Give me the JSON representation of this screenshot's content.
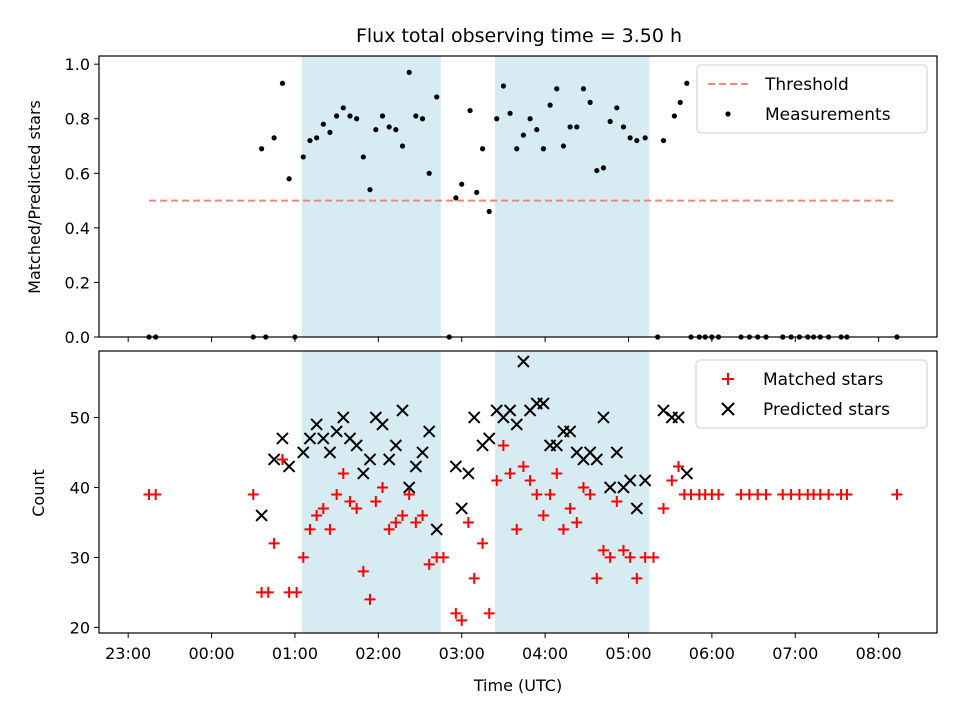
{
  "chart_data": {
    "type": "scatter",
    "title": "Flux total observing time = 3.50 h",
    "xlabel": "Time (UTC)",
    "x_unit": "hours since 23:00",
    "xlim": [
      -0.35,
      9.7
    ],
    "x_ticks": [
      {
        "value": 0,
        "label": "23:00"
      },
      {
        "value": 1,
        "label": "00:00"
      },
      {
        "value": 2,
        "label": "01:00"
      },
      {
        "value": 3,
        "label": "02:00"
      },
      {
        "value": 4,
        "label": "03:00"
      },
      {
        "value": 5,
        "label": "04:00"
      },
      {
        "value": 6,
        "label": "05:00"
      },
      {
        "value": 7,
        "label": "06:00"
      },
      {
        "value": 8,
        "label": "07:00"
      },
      {
        "value": 9,
        "label": "08:00"
      }
    ],
    "observing_windows": [
      [
        2.08,
        3.75
      ],
      [
        4.4,
        6.25
      ]
    ],
    "top": {
      "ylabel": "Matched/Predicted stars",
      "ylim": [
        0,
        1.03
      ],
      "y_ticks": [
        {
          "value": 0.0,
          "label": "0.0"
        },
        {
          "value": 0.2,
          "label": "0.2"
        },
        {
          "value": 0.4,
          "label": "0.4"
        },
        {
          "value": 0.6,
          "label": "0.6"
        },
        {
          "value": 0.8,
          "label": "0.8"
        },
        {
          "value": 1.0,
          "label": "1.0"
        }
      ],
      "threshold": {
        "name": "Threshold",
        "value": 0.5,
        "x_range": [
          0.25,
          9.2
        ],
        "color": "#ff7f7f"
      },
      "legend": [
        "Threshold",
        "Measurements"
      ],
      "series": [
        {
          "name": "Measurements",
          "color": "#000000",
          "points": [
            [
              0.25,
              0.0
            ],
            [
              0.33,
              0.0
            ],
            [
              1.5,
              0.0
            ],
            [
              1.65,
              0.0
            ],
            [
              2.0,
              0.0
            ],
            [
              1.6,
              0.69
            ],
            [
              1.75,
              0.73
            ],
            [
              1.85,
              0.93
            ],
            [
              1.93,
              0.58
            ],
            [
              2.1,
              0.66
            ],
            [
              2.18,
              0.72
            ],
            [
              2.26,
              0.73
            ],
            [
              2.34,
              0.78
            ],
            [
              2.42,
              0.75
            ],
            [
              2.5,
              0.81
            ],
            [
              2.58,
              0.84
            ],
            [
              2.66,
              0.81
            ],
            [
              2.74,
              0.8
            ],
            [
              2.82,
              0.66
            ],
            [
              2.9,
              0.54
            ],
            [
              2.97,
              0.76
            ],
            [
              3.05,
              0.81
            ],
            [
              3.13,
              0.77
            ],
            [
              3.21,
              0.76
            ],
            [
              3.29,
              0.7
            ],
            [
              3.37,
              0.97
            ],
            [
              3.45,
              0.81
            ],
            [
              3.53,
              0.8
            ],
            [
              3.61,
              0.6
            ],
            [
              3.7,
              0.88
            ],
            [
              3.85,
              0.0
            ],
            [
              3.93,
              0.51
            ],
            [
              4.0,
              0.56
            ],
            [
              4.1,
              0.83
            ],
            [
              4.18,
              0.53
            ],
            [
              4.25,
              0.69
            ],
            [
              4.33,
              0.46
            ],
            [
              4.42,
              0.8
            ],
            [
              4.5,
              0.92
            ],
            [
              4.58,
              0.82
            ],
            [
              4.66,
              0.69
            ],
            [
              4.74,
              0.74
            ],
            [
              4.82,
              0.8
            ],
            [
              4.9,
              0.76
            ],
            [
              4.98,
              0.69
            ],
            [
              5.06,
              0.85
            ],
            [
              5.14,
              0.91
            ],
            [
              5.22,
              0.7
            ],
            [
              5.3,
              0.77
            ],
            [
              5.38,
              0.77
            ],
            [
              5.46,
              0.91
            ],
            [
              5.54,
              0.86
            ],
            [
              5.62,
              0.61
            ],
            [
              5.7,
              0.62
            ],
            [
              5.78,
              0.79
            ],
            [
              5.86,
              0.84
            ],
            [
              5.94,
              0.77
            ],
            [
              6.02,
              0.73
            ],
            [
              6.1,
              0.72
            ],
            [
              6.2,
              0.73
            ],
            [
              6.35,
              0.0
            ],
            [
              6.42,
              0.72
            ],
            [
              6.55,
              0.81
            ],
            [
              6.62,
              0.86
            ],
            [
              6.7,
              0.93
            ],
            [
              6.75,
              0.0
            ],
            [
              6.85,
              0.0
            ],
            [
              6.92,
              0.0
            ],
            [
              7.0,
              0.0
            ],
            [
              7.08,
              0.0
            ],
            [
              7.35,
              0.0
            ],
            [
              7.45,
              0.0
            ],
            [
              7.55,
              0.0
            ],
            [
              7.65,
              0.0
            ],
            [
              7.85,
              0.0
            ],
            [
              7.95,
              0.0
            ],
            [
              8.05,
              0.0
            ],
            [
              8.15,
              0.0
            ],
            [
              8.22,
              0.0
            ],
            [
              8.3,
              0.0
            ],
            [
              8.4,
              0.0
            ],
            [
              8.55,
              0.0
            ],
            [
              8.62,
              0.0
            ],
            [
              9.22,
              0.0
            ]
          ]
        }
      ]
    },
    "bottom": {
      "ylabel": "Count",
      "ylim": [
        19.2,
        59.5
      ],
      "y_ticks": [
        {
          "value": 20,
          "label": "20"
        },
        {
          "value": 30,
          "label": "30"
        },
        {
          "value": 40,
          "label": "40"
        },
        {
          "value": 50,
          "label": "50"
        }
      ],
      "legend": [
        "Matched stars",
        "Predicted stars"
      ],
      "series": [
        {
          "name": "Matched stars",
          "marker": "+",
          "color": "#ff0000",
          "points": [
            [
              0.25,
              39
            ],
            [
              0.33,
              39
            ],
            [
              1.5,
              39
            ],
            [
              1.6,
              25
            ],
            [
              1.68,
              25
            ],
            [
              1.75,
              32
            ],
            [
              1.85,
              44
            ],
            [
              1.93,
              25
            ],
            [
              2.02,
              25
            ],
            [
              2.1,
              30
            ],
            [
              2.18,
              34
            ],
            [
              2.26,
              36
            ],
            [
              2.34,
              37
            ],
            [
              2.42,
              34
            ],
            [
              2.5,
              39
            ],
            [
              2.58,
              42
            ],
            [
              2.66,
              38
            ],
            [
              2.74,
              37
            ],
            [
              2.82,
              28
            ],
            [
              2.9,
              24
            ],
            [
              2.97,
              38
            ],
            [
              3.05,
              40
            ],
            [
              3.13,
              34
            ],
            [
              3.21,
              35
            ],
            [
              3.29,
              36
            ],
            [
              3.37,
              39
            ],
            [
              3.45,
              35
            ],
            [
              3.53,
              36
            ],
            [
              3.61,
              29
            ],
            [
              3.7,
              30
            ],
            [
              3.78,
              30
            ],
            [
              3.93,
              22
            ],
            [
              4.0,
              21
            ],
            [
              4.08,
              35
            ],
            [
              4.15,
              27
            ],
            [
              4.25,
              32
            ],
            [
              4.33,
              22
            ],
            [
              4.42,
              41
            ],
            [
              4.5,
              46
            ],
            [
              4.58,
              42
            ],
            [
              4.66,
              34
            ],
            [
              4.74,
              43
            ],
            [
              4.82,
              41
            ],
            [
              4.9,
              39
            ],
            [
              4.98,
              36
            ],
            [
              5.06,
              39
            ],
            [
              5.14,
              42
            ],
            [
              5.22,
              34
            ],
            [
              5.3,
              37
            ],
            [
              5.38,
              35
            ],
            [
              5.46,
              40
            ],
            [
              5.54,
              39
            ],
            [
              5.62,
              27
            ],
            [
              5.7,
              31
            ],
            [
              5.78,
              30
            ],
            [
              5.86,
              38
            ],
            [
              5.94,
              31
            ],
            [
              6.02,
              30
            ],
            [
              6.1,
              27
            ],
            [
              6.2,
              30
            ],
            [
              6.3,
              30
            ],
            [
              6.42,
              37
            ],
            [
              6.52,
              41
            ],
            [
              6.6,
              43
            ],
            [
              6.67,
              39
            ],
            [
              6.75,
              39
            ],
            [
              6.85,
              39
            ],
            [
              6.92,
              39
            ],
            [
              7.0,
              39
            ],
            [
              7.08,
              39
            ],
            [
              7.35,
              39
            ],
            [
              7.45,
              39
            ],
            [
              7.55,
              39
            ],
            [
              7.65,
              39
            ],
            [
              7.85,
              39
            ],
            [
              7.95,
              39
            ],
            [
              8.05,
              39
            ],
            [
              8.15,
              39
            ],
            [
              8.22,
              39
            ],
            [
              8.3,
              39
            ],
            [
              8.4,
              39
            ],
            [
              8.55,
              39
            ],
            [
              8.62,
              39
            ],
            [
              9.22,
              39
            ]
          ]
        },
        {
          "name": "Predicted stars",
          "marker": "x",
          "color": "#000000",
          "points": [
            [
              1.6,
              36
            ],
            [
              1.75,
              44
            ],
            [
              1.85,
              47
            ],
            [
              1.93,
              43
            ],
            [
              2.1,
              45
            ],
            [
              2.18,
              47
            ],
            [
              2.26,
              49
            ],
            [
              2.34,
              47
            ],
            [
              2.42,
              45
            ],
            [
              2.5,
              48
            ],
            [
              2.58,
              50
            ],
            [
              2.66,
              47
            ],
            [
              2.74,
              46
            ],
            [
              2.82,
              42
            ],
            [
              2.9,
              44
            ],
            [
              2.97,
              50
            ],
            [
              3.05,
              49
            ],
            [
              3.13,
              44
            ],
            [
              3.21,
              46
            ],
            [
              3.29,
              51
            ],
            [
              3.37,
              40
            ],
            [
              3.45,
              43
            ],
            [
              3.53,
              45
            ],
            [
              3.61,
              48
            ],
            [
              3.7,
              34
            ],
            [
              3.93,
              43
            ],
            [
              4.0,
              37
            ],
            [
              4.08,
              42
            ],
            [
              4.15,
              50
            ],
            [
              4.25,
              46
            ],
            [
              4.33,
              47
            ],
            [
              4.42,
              51
            ],
            [
              4.5,
              50
            ],
            [
              4.58,
              51
            ],
            [
              4.66,
              49
            ],
            [
              4.74,
              58
            ],
            [
              4.82,
              51
            ],
            [
              4.9,
              52
            ],
            [
              4.98,
              52
            ],
            [
              5.06,
              46
            ],
            [
              5.14,
              46
            ],
            [
              5.22,
              48
            ],
            [
              5.3,
              48
            ],
            [
              5.38,
              45
            ],
            [
              5.46,
              44
            ],
            [
              5.54,
              45
            ],
            [
              5.62,
              44
            ],
            [
              5.7,
              50
            ],
            [
              5.78,
              40
            ],
            [
              5.86,
              45
            ],
            [
              5.94,
              40
            ],
            [
              6.02,
              41
            ],
            [
              6.1,
              37
            ],
            [
              6.2,
              41
            ],
            [
              6.42,
              51
            ],
            [
              6.52,
              50
            ],
            [
              6.6,
              50
            ],
            [
              6.7,
              42
            ]
          ]
        }
      ]
    }
  }
}
